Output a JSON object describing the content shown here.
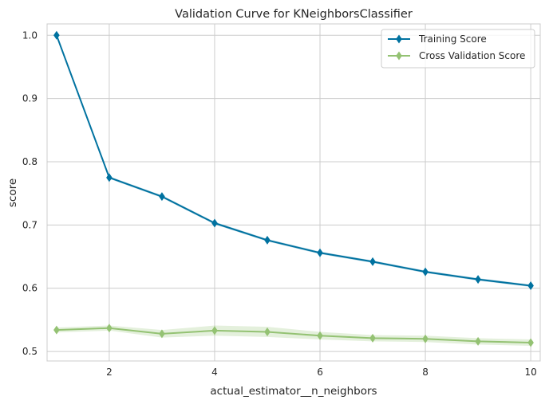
{
  "chart_data": {
    "type": "line",
    "title": "Validation Curve for KNeighborsClassifier",
    "xlabel": "actual_estimator__n_neighbors",
    "ylabel": "score",
    "xlim": [
      0.82,
      10.18
    ],
    "ylim": [
      0.485,
      1.018
    ],
    "xticks": [
      2,
      4,
      6,
      8,
      10
    ],
    "yticks": [
      0.5,
      0.6,
      0.7,
      0.8,
      0.9,
      1.0
    ],
    "ytick_labels": [
      "0.5",
      "0.6",
      "0.7",
      "0.8",
      "0.9",
      "1.0"
    ],
    "grid": true,
    "legend_position": "top-right",
    "x": [
      1,
      2,
      3,
      4,
      5,
      6,
      7,
      8,
      9,
      10
    ],
    "series": [
      {
        "name": "Training Score",
        "color": "#0072a0",
        "marker": "diamond",
        "values": [
          1.0,
          0.775,
          0.745,
          0.703,
          0.676,
          0.656,
          0.642,
          0.626,
          0.614,
          0.604
        ],
        "band_lower": [
          1.0,
          0.773,
          0.743,
          0.701,
          0.674,
          0.654,
          0.64,
          0.624,
          0.612,
          0.602
        ],
        "band_upper": [
          1.0,
          0.777,
          0.747,
          0.705,
          0.678,
          0.658,
          0.644,
          0.628,
          0.616,
          0.606
        ]
      },
      {
        "name": "Cross Validation Score",
        "color": "#94c273",
        "marker": "diamond",
        "values": [
          0.534,
          0.537,
          0.528,
          0.533,
          0.531,
          0.525,
          0.521,
          0.52,
          0.516,
          0.514
        ],
        "band_lower": [
          0.53,
          0.533,
          0.522,
          0.525,
          0.523,
          0.519,
          0.516,
          0.515,
          0.511,
          0.509
        ],
        "band_upper": [
          0.538,
          0.541,
          0.534,
          0.541,
          0.539,
          0.531,
          0.526,
          0.525,
          0.521,
          0.519
        ]
      }
    ]
  }
}
